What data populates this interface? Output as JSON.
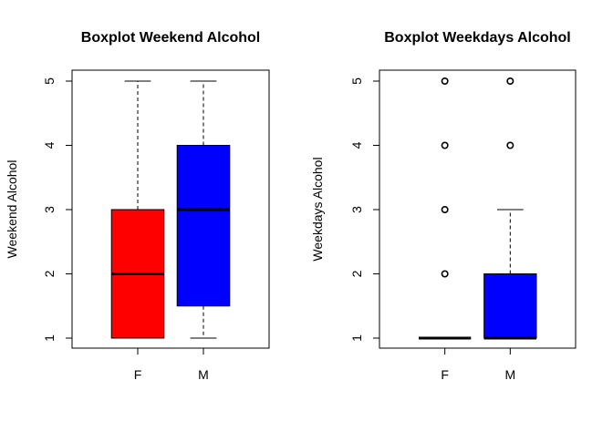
{
  "chart_data": [
    {
      "type": "boxplot",
      "title": "Boxplot Weekend Alcohol",
      "xlabel": "",
      "ylabel": "Weekend Alcohol",
      "categories": [
        "F",
        "M"
      ],
      "ylim": [
        1,
        5
      ],
      "yticks": [
        "1",
        "2",
        "3",
        "4",
        "5"
      ],
      "grid": false,
      "boxes": [
        {
          "name": "F",
          "min": 1,
          "q1": 1,
          "median": 2,
          "q3": 3,
          "max": 5,
          "outliers": [],
          "color": "#ff0000"
        },
        {
          "name": "M",
          "min": 1,
          "q1": 1.5,
          "median": 3,
          "q3": 4,
          "max": 5,
          "outliers": [],
          "color": "#0000ff"
        }
      ]
    },
    {
      "type": "boxplot",
      "title": "Boxplot Weekdays Alcohol",
      "xlabel": "",
      "ylabel": "Weekdays Alcohol",
      "categories": [
        "F",
        "M"
      ],
      "ylim": [
        1,
        5
      ],
      "yticks": [
        "1",
        "2",
        "3",
        "4",
        "5"
      ],
      "grid": false,
      "boxes": [
        {
          "name": "F",
          "min": 1,
          "q1": 1,
          "median": 1,
          "q3": 1,
          "max": 1,
          "outliers": [
            2,
            3,
            4,
            5
          ],
          "color": "#ff0000"
        },
        {
          "name": "M",
          "min": 1,
          "q1": 1,
          "median": 1,
          "q3": 2,
          "max": 3,
          "outliers": [
            4,
            5
          ],
          "color": "#0000ff"
        }
      ]
    }
  ]
}
